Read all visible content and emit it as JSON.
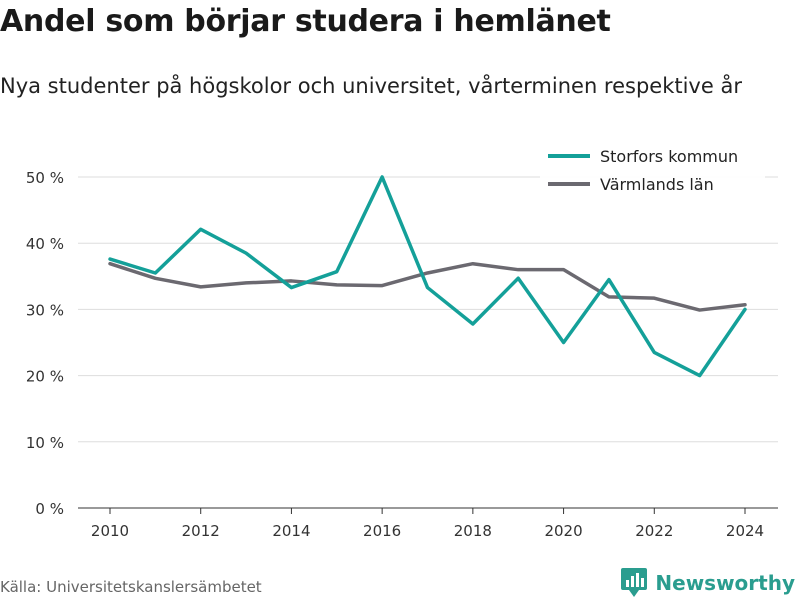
{
  "title": "Andel som börjar studera i hemlänet",
  "subtitle": "Nya studenter på högskolor och universitet, vårterminen respektive år",
  "source": "Källa: Universitetskanslersämbetet",
  "brand": {
    "name": "Newsworthy",
    "icon": "bar-chart-logo-icon"
  },
  "colors": {
    "series1": "#14a099",
    "series2": "#6b6970",
    "grid": "#dddddd",
    "brand": "#2a9d8f"
  },
  "chart_data": {
    "type": "line",
    "title": "Andel som börjar studera i hemlänet",
    "subtitle": "Nya studenter på högskolor och universitet, vårterminen respektive år",
    "x": [
      2010,
      2011,
      2012,
      2013,
      2014,
      2015,
      2016,
      2017,
      2018,
      2019,
      2020,
      2021,
      2022,
      2023,
      2024
    ],
    "x_ticks": [
      "2010",
      "2012",
      "2014",
      "2016",
      "2018",
      "2020",
      "2022",
      "2024"
    ],
    "y_ticks": [
      "0 %",
      "10 %",
      "20 %",
      "30 %",
      "40 %",
      "50 %"
    ],
    "ylim": [
      0,
      50
    ],
    "grid": true,
    "legend_position": "top-right",
    "series": [
      {
        "name": "Storfors kommun",
        "color": "#14a099",
        "values": [
          37.6,
          35.5,
          42.1,
          38.5,
          33.3,
          35.7,
          50.0,
          33.3,
          27.8,
          34.7,
          25.0,
          34.5,
          23.5,
          20.0,
          30.0
        ]
      },
      {
        "name": "Värmlands län",
        "color": "#6b6970",
        "values": [
          36.9,
          34.7,
          33.4,
          34.0,
          34.3,
          33.7,
          33.6,
          35.5,
          36.9,
          36.0,
          36.0,
          31.9,
          31.7,
          29.9,
          30.7
        ]
      }
    ]
  }
}
